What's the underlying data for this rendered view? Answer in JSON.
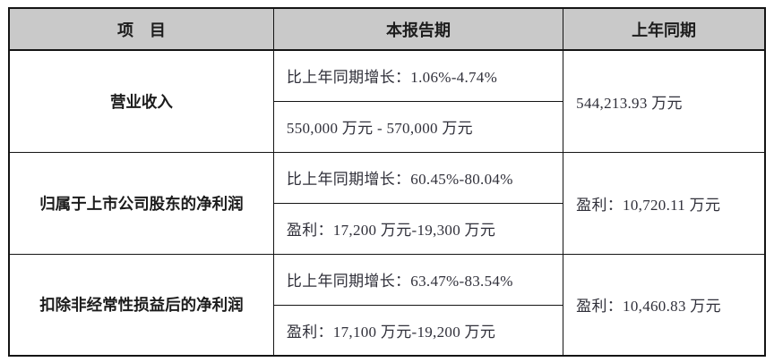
{
  "table": {
    "headers": {
      "item": "项　目",
      "current_period": "本报告期",
      "prior_period": "上年同期"
    },
    "rows": [
      {
        "item": "营业收入",
        "growth": "比上年同期增长：1.06%-4.74%",
        "value": "550,000 万元 - 570,000 万元",
        "prior": "544,213.93 万元"
      },
      {
        "item": "归属于上市公司股东的净利润",
        "growth": "比上年同期增长：60.45%-80.04%",
        "value": "盈利：17,200 万元-19,300 万元",
        "prior": "盈利：10,720.11 万元"
      },
      {
        "item": "扣除非经常性损益后的净利润",
        "growth": "比上年同期增长：63.47%-83.54%",
        "value": "盈利：17,100 万元-19,200 万元",
        "prior": "盈利：10,460.83 万元"
      }
    ],
    "colors": {
      "header_bg": "#c9c9c9",
      "border": "#141414",
      "body_text": "#30303a",
      "bold_text": "#1c1c1c"
    }
  }
}
